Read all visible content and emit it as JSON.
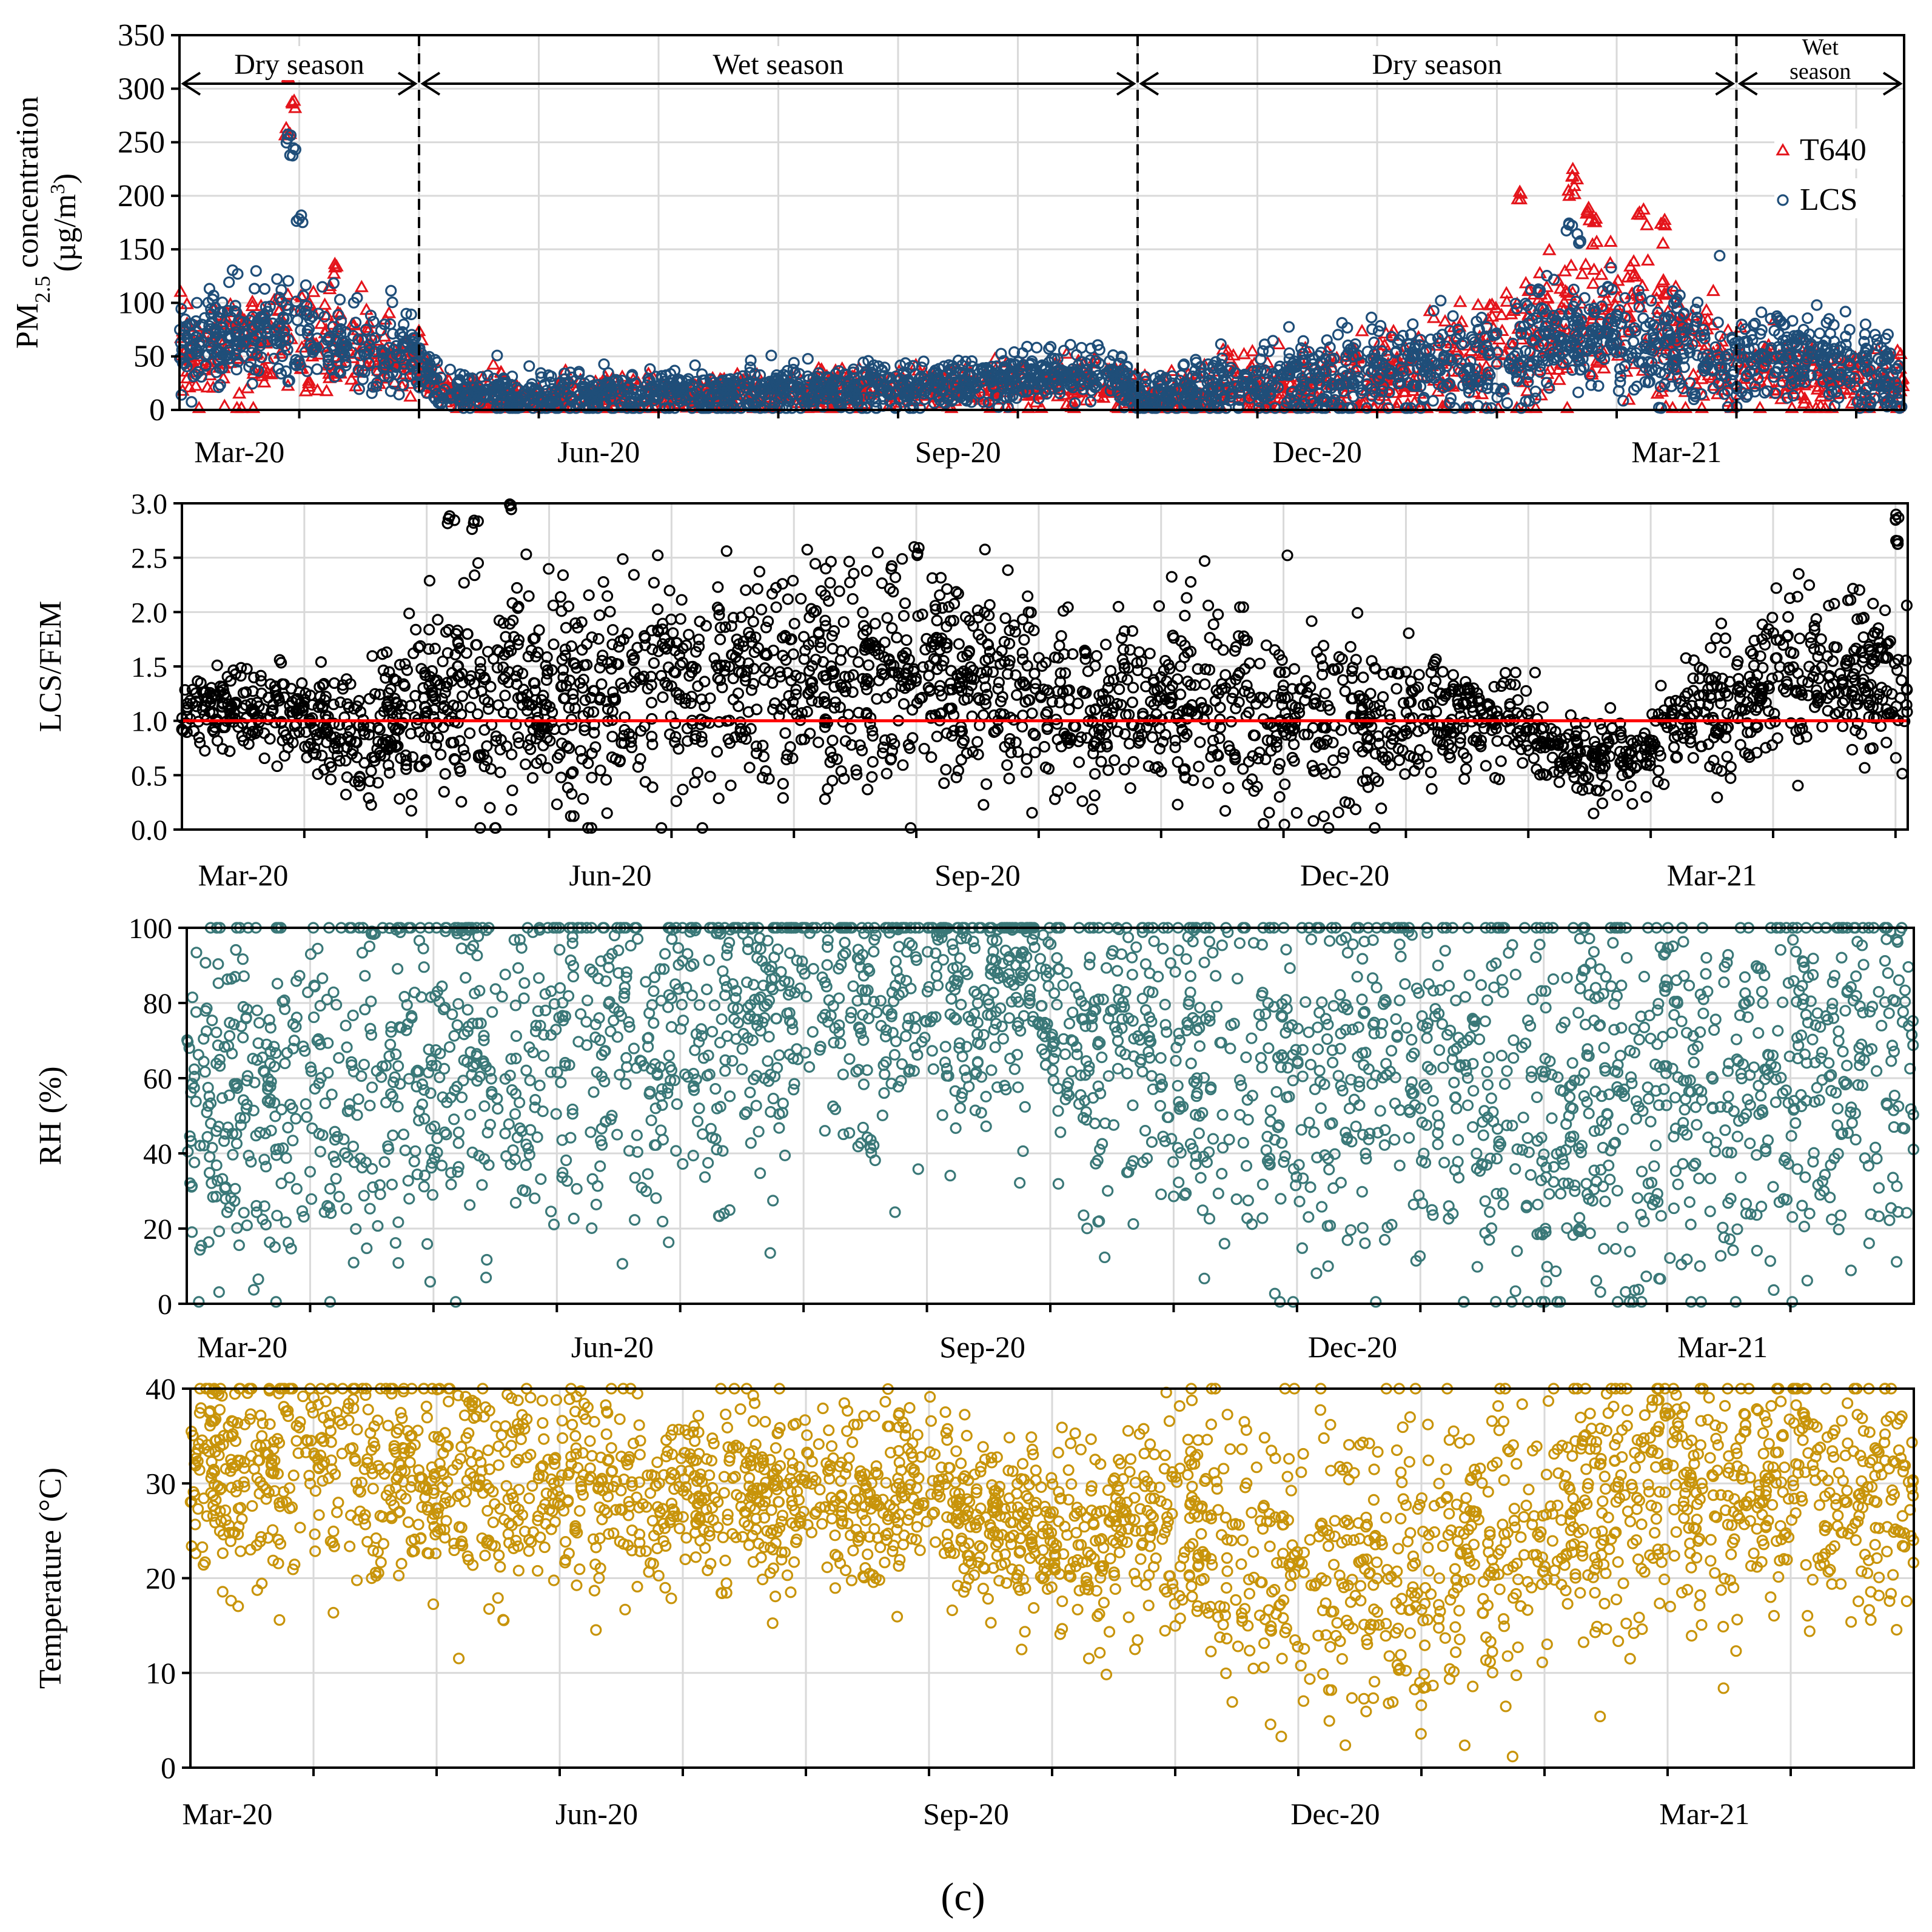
{
  "figure_label": "(c)",
  "chart_data": [
    {
      "type": "scatter",
      "id": "pm25",
      "title": "",
      "ylabel_parts": [
        "PM",
        "2.5",
        " concentration",
        "(µg/m",
        "3",
        ")"
      ],
      "ylim": [
        0,
        350
      ],
      "yticks": [
        0,
        50,
        100,
        150,
        200,
        250,
        300,
        350
      ],
      "xlim": [
        0,
        14.4
      ],
      "xtick_labels": [
        "Mar-20",
        "Jun-20",
        "Sep-20",
        "Dec-20",
        "Mar-21"
      ],
      "xtick_positions": [
        0.5,
        3.5,
        6.5,
        9.5,
        12.5
      ],
      "grid": true,
      "legend": {
        "position": "top-right",
        "entries": [
          "T640",
          "LCS"
        ]
      },
      "season_dividers": [
        2,
        8,
        13
      ],
      "season_labels": [
        {
          "text": "Dry season",
          "start": 0,
          "end": 2
        },
        {
          "text": "Wet season",
          "start": 2,
          "end": 8
        },
        {
          "text": "Dry season",
          "start": 8,
          "end": 13
        },
        {
          "text": "Wet",
          "start": 13,
          "end": 14.4
        },
        {
          "text": "season",
          "start": 13,
          "end": 14.4
        }
      ],
      "series": [
        {
          "name": "T640",
          "color": "#e4141b",
          "marker": "triangle",
          "baseline": [
            [
              0,
              55
            ],
            [
              0.3,
              55
            ],
            [
              0.6,
              60
            ],
            [
              1,
              70
            ],
            [
              1.5,
              50
            ],
            [
              2,
              45
            ],
            [
              2.2,
              15
            ],
            [
              3,
              12
            ],
            [
              4,
              12
            ],
            [
              5,
              13
            ],
            [
              6,
              18
            ],
            [
              7,
              25
            ],
            [
              7.8,
              25
            ],
            [
              8,
              10
            ],
            [
              8.5,
              15
            ],
            [
              9,
              20
            ],
            [
              10,
              30
            ],
            [
              11,
              45
            ],
            [
              11.3,
              70
            ],
            [
              12,
              90
            ],
            [
              12.5,
              70
            ],
            [
              13,
              35
            ],
            [
              14,
              30
            ],
            [
              14.4,
              20
            ]
          ],
          "spread": [
            [
              0,
              45
            ],
            [
              1,
              60
            ],
            [
              2,
              35
            ],
            [
              2.2,
              20
            ],
            [
              8,
              25
            ],
            [
              10,
              45
            ],
            [
              11,
              70
            ],
            [
              12.5,
              75
            ],
            [
              13,
              40
            ],
            [
              14.4,
              35
            ]
          ],
          "peaks": [
            [
              0.92,
              320
            ],
            [
              0.95,
              290
            ],
            [
              0.9,
              265
            ],
            [
              1.3,
              137
            ],
            [
              11.2,
              207
            ],
            [
              11.65,
              225
            ],
            [
              11.62,
              210
            ],
            [
              11.75,
              190
            ],
            [
              11.8,
              180
            ],
            [
              12.2,
              188
            ],
            [
              12.4,
              178
            ]
          ]
        },
        {
          "name": "LCS",
          "color": "#1f4e79",
          "marker": "circle",
          "baseline": [
            [
              0,
              60
            ],
            [
              0.5,
              65
            ],
            [
              1,
              75
            ],
            [
              1.5,
              55
            ],
            [
              2,
              50
            ],
            [
              2.2,
              15
            ],
            [
              4,
              15
            ],
            [
              6,
              20
            ],
            [
              7,
              30
            ],
            [
              7.8,
              35
            ],
            [
              8,
              12
            ],
            [
              9,
              25
            ],
            [
              10,
              40
            ],
            [
              11,
              45
            ],
            [
              11.5,
              70
            ],
            [
              12,
              70
            ],
            [
              12.5,
              60
            ],
            [
              13,
              45
            ],
            [
              13.5,
              55
            ],
            [
              14,
              40
            ],
            [
              14.4,
              25
            ]
          ],
          "spread": [
            [
              0,
              45
            ],
            [
              1,
              55
            ],
            [
              2,
              35
            ],
            [
              2.2,
              22
            ],
            [
              8,
              25
            ],
            [
              10,
              45
            ],
            [
              11,
              55
            ],
            [
              12.5,
              60
            ],
            [
              13,
              45
            ],
            [
              14.4,
              40
            ]
          ],
          "peaks": [
            [
              0.9,
              260
            ],
            [
              0.95,
              245
            ],
            [
              1.0,
              185
            ],
            [
              11.7,
              165
            ],
            [
              11.6,
              175
            ]
          ]
        }
      ]
    },
    {
      "type": "scatter",
      "id": "ratio",
      "ylabel": "LCS/FEM",
      "ylim": [
        0,
        3.0
      ],
      "yticks": [
        "0.0",
        "0.5",
        "1.0",
        "1.5",
        "2.0",
        "2.5",
        "3.0"
      ],
      "xlim": [
        0,
        14.1
      ],
      "xtick_labels": [
        "Mar-20",
        "Jun-20",
        "Sep-20",
        "Dec-20",
        "Mar-21"
      ],
      "xtick_positions": [
        0.5,
        3.5,
        6.5,
        9.5,
        12.5
      ],
      "grid": true,
      "reference_line": {
        "y": 1.0,
        "color": "#ff0000"
      },
      "series": [
        {
          "name": "LCS/FEM",
          "color": "#000000",
          "marker": "circle",
          "baseline": [
            [
              0,
              1.1
            ],
            [
              0.5,
              1.15
            ],
            [
              1,
              1.0
            ],
            [
              1.5,
              0.9
            ],
            [
              2,
              1.2
            ],
            [
              3,
              1.2
            ],
            [
              4,
              1.25
            ],
            [
              5,
              1.35
            ],
            [
              6,
              1.4
            ],
            [
              7,
              1.3
            ],
            [
              7.3,
              1.0
            ],
            [
              8,
              1.2
            ],
            [
              9,
              1.0
            ],
            [
              10,
              1.0
            ],
            [
              11,
              1.0
            ],
            [
              11.2,
              0.7
            ],
            [
              12,
              0.65
            ],
            [
              12.3,
              1.1
            ],
            [
              13,
              1.3
            ],
            [
              13.5,
              1.5
            ],
            [
              14,
              1.3
            ],
            [
              14.1,
              1.2
            ]
          ],
          "spread": [
            [
              0,
              0.35
            ],
            [
              1,
              0.5
            ],
            [
              2,
              1.0
            ],
            [
              4,
              1.2
            ],
            [
              6,
              1.1
            ],
            [
              7,
              1.0
            ],
            [
              8,
              0.8
            ],
            [
              9,
              0.9
            ],
            [
              10,
              0.7
            ],
            [
              11,
              0.5
            ],
            [
              11.3,
              0.35
            ],
            [
              12.2,
              0.5
            ],
            [
              13,
              0.8
            ],
            [
              14.1,
              0.9
            ]
          ],
          "peaks": [
            [
              2.7,
              3.0
            ],
            [
              2.2,
              2.9
            ],
            [
              2.4,
              2.85
            ],
            [
              6,
              2.6
            ],
            [
              14,
              2.9
            ],
            [
              14,
              2.7
            ]
          ]
        }
      ]
    },
    {
      "type": "scatter",
      "id": "rh",
      "ylabel": "RH (%)",
      "ylim": [
        0,
        100
      ],
      "yticks": [
        0,
        20,
        40,
        60,
        80,
        100
      ],
      "xlim": [
        0,
        14.0
      ],
      "xtick_labels": [
        "Mar-20",
        "Jun-20",
        "Sep-20",
        "Dec-20",
        "Mar-21"
      ],
      "xtick_positions": [
        0.45,
        3.45,
        6.45,
        9.45,
        12.45
      ],
      "grid": true,
      "series": [
        {
          "name": "RH",
          "color": "#3a7878",
          "marker": "circle",
          "baseline": [
            [
              0,
              52
            ],
            [
              1,
              58
            ],
            [
              2,
              65
            ],
            [
              3,
              72
            ],
            [
              4,
              72
            ],
            [
              5,
              78
            ],
            [
              6,
              80
            ],
            [
              7,
              85
            ],
            [
              7,
              72
            ],
            [
              8,
              68
            ],
            [
              9,
              65
            ],
            [
              10,
              62
            ],
            [
              11,
              55
            ],
            [
              12,
              55
            ],
            [
              13,
              60
            ],
            [
              14,
              70
            ]
          ],
          "spread": [
            [
              0,
              55
            ],
            [
              2,
              60
            ],
            [
              4,
              55
            ],
            [
              6,
              45
            ],
            [
              7,
              40
            ],
            [
              8,
              55
            ],
            [
              10,
              60
            ],
            [
              11,
              65
            ],
            [
              13,
              60
            ],
            [
              14,
              55
            ]
          ],
          "peaks": [
            [
              1.5,
              100
            ],
            [
              2.2,
              100
            ],
            [
              4.3,
              100
            ],
            [
              6.1,
              100
            ],
            [
              11,
              20
            ],
            [
              11.3,
              22
            ],
            [
              12,
              95
            ]
          ]
        }
      ]
    },
    {
      "type": "scatter",
      "id": "temp",
      "ylabel": "Temperature (°C)",
      "ylim": [
        0,
        40
      ],
      "yticks": [
        0,
        10,
        20,
        30,
        40
      ],
      "xlim": [
        0,
        14.0
      ],
      "xtick_labels": [
        "Mar-20",
        "Jun-20",
        "Sep-20",
        "Dec-20",
        "Mar-21"
      ],
      "xtick_positions": [
        0.3,
        3.3,
        6.3,
        9.3,
        12.3
      ],
      "grid": true,
      "series": [
        {
          "name": "Temperature",
          "color": "#c8940a",
          "marker": "circle",
          "baseline": [
            [
              0,
              31
            ],
            [
              1,
              32
            ],
            [
              2,
              31
            ],
            [
              3,
              30
            ],
            [
              4,
              29
            ],
            [
              5,
              28
            ],
            [
              6,
              28
            ],
            [
              7,
              24
            ],
            [
              8,
              25
            ],
            [
              9,
              22
            ],
            [
              10,
              20
            ],
            [
              11,
              25
            ],
            [
              12,
              30
            ],
            [
              13,
              30
            ],
            [
              14,
              29
            ]
          ],
          "spread": [
            [
              0,
              14
            ],
            [
              2,
              14
            ],
            [
              4,
              11
            ],
            [
              6,
              10
            ],
            [
              7,
              10
            ],
            [
              8,
              14
            ],
            [
              9,
              17
            ],
            [
              10,
              20
            ],
            [
              11,
              16
            ],
            [
              12,
              16
            ],
            [
              14,
              14
            ]
          ],
          "peaks": [
            [
              0.2,
              40
            ],
            [
              1.3,
              39
            ],
            [
              9.8,
              11
            ],
            [
              11.9,
              39
            ],
            [
              1.5,
              21
            ]
          ]
        }
      ]
    }
  ]
}
